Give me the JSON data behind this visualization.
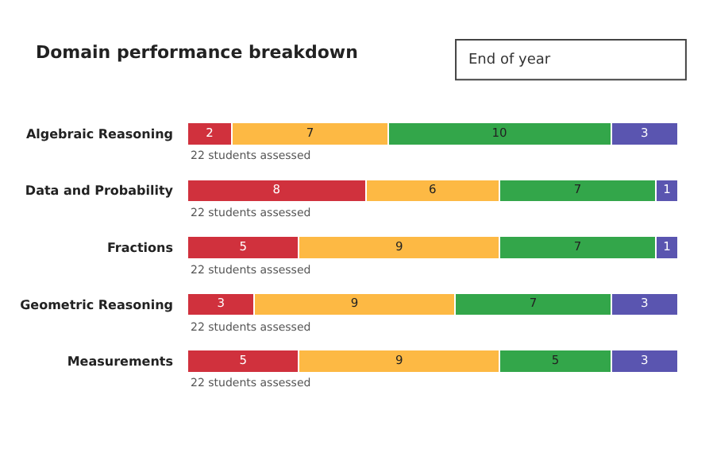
{
  "chart_data": {
    "type": "bar",
    "orientation": "horizontal",
    "stacked": true,
    "data_labels": true,
    "tick_labels": "y",
    "title": "Domain performance breakdown",
    "categories": [
      "Algebraic Reasoning",
      "Data and Probability",
      "Fractions",
      "Geometric Reasoning",
      "Measurements"
    ],
    "series": [
      {
        "color": "#d0313d",
        "values": [
          2,
          8,
          5,
          3,
          5
        ]
      },
      {
        "color": "#fdb944",
        "values": [
          7,
          6,
          9,
          9,
          9
        ]
      },
      {
        "color": "#33a64a",
        "values": [
          10,
          7,
          7,
          7,
          5
        ]
      },
      {
        "color": "#5a55b0",
        "values": [
          3,
          1,
          1,
          3,
          3
        ]
      }
    ],
    "annotations": [
      "22 students assessed",
      "22 students assessed",
      "22 students assessed",
      "22 students assessed",
      "22 students assessed",
      "End of year"
    ]
  }
}
